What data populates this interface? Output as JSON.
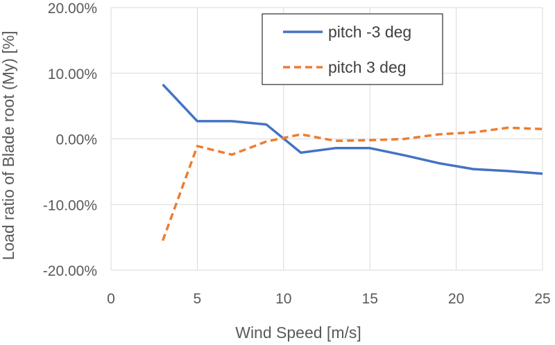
{
  "chart_data": {
    "type": "line",
    "title": "",
    "xlabel": "Wind Speed [m/s]",
    "ylabel": "Load ratio of Blade root (My) [%]",
    "xlim": [
      0,
      25
    ],
    "ylim": [
      -20,
      20
    ],
    "xticks": [
      0,
      5,
      10,
      15,
      20,
      25
    ],
    "yticks": [
      -20,
      -10,
      0,
      10,
      20
    ],
    "ytick_labels": [
      "-20.00%",
      "-10.00%",
      "0.00%",
      "10.00%",
      "20.00%"
    ],
    "grid": true,
    "legend_position": "top-right",
    "x": [
      3,
      5,
      7,
      9,
      11,
      13,
      15,
      17,
      19,
      21,
      23,
      25
    ],
    "series": [
      {
        "name": "pitch -3 deg",
        "color": "#4472C4",
        "style": "solid",
        "values": [
          8.3,
          2.7,
          2.7,
          2.2,
          -2.1,
          -1.4,
          -1.4,
          -2.5,
          -3.7,
          -4.6,
          -4.9,
          -5.3
        ]
      },
      {
        "name": "pitch 3 deg",
        "color": "#ED7D31",
        "style": "dashed",
        "values": [
          -15.5,
          -1.1,
          -2.4,
          -0.4,
          0.7,
          -0.3,
          -0.2,
          0.0,
          0.7,
          1.0,
          1.7,
          1.5
        ]
      }
    ]
  }
}
